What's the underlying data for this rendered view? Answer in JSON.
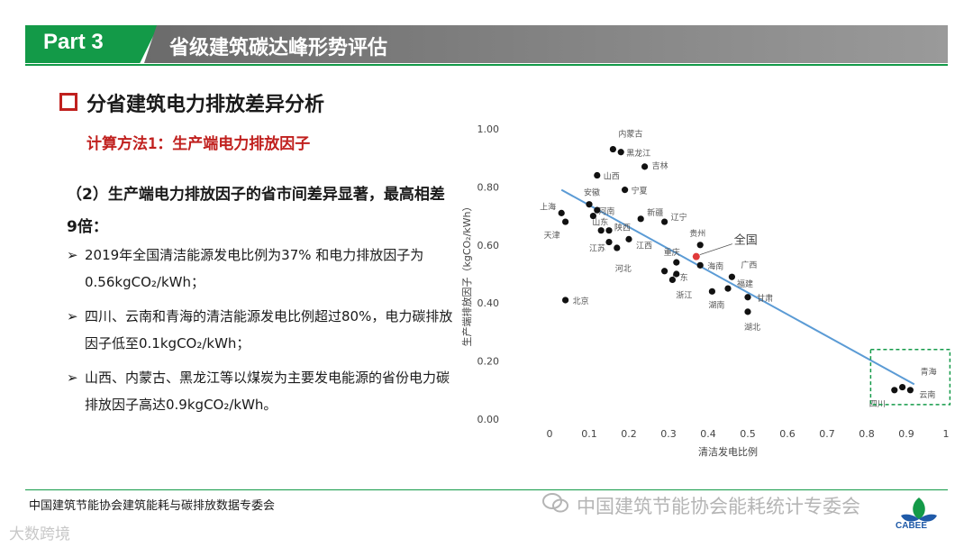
{
  "header": {
    "part": "Part 3",
    "title": "省级建筑碳达峰形势评估"
  },
  "section": {
    "title": "分省建筑电力排放差异分析",
    "method": "计算方法1：生产端电力排放因子"
  },
  "content": {
    "subheading": "（2）生产端电力排放因子的省市间差异显著，最高相差9倍：",
    "bullets": [
      "2019年全国清洁能源发电比例为37% 和电力排放因子为0.56kgCO₂/kWh；",
      "四川、云南和青海的清洁能源发电比例超过80%，电力碳排放因子低至0.1kgCO₂/kWh；",
      "山西、内蒙古、黑龙江等以煤炭为主要发电能源的省份电力碳排放因子高达0.9kgCO₂/kWh。"
    ],
    "bullet_mark": "➢"
  },
  "chart_data": {
    "type": "scatter",
    "xlabel": "清洁发电比例",
    "ylabel": "生产端排放因子（kgCO₂/kWh）",
    "xlim": [
      0,
      1
    ],
    "ylim": [
      0,
      1
    ],
    "xticks": [
      "0",
      "0.1",
      "0.2",
      "0.3",
      "0.4",
      "0.5",
      "0.6",
      "0.7",
      "0.8",
      "0.9",
      "1"
    ],
    "yticks": [
      "0.00",
      "0.20",
      "0.40",
      "0.60",
      "0.80",
      "1.00"
    ],
    "points": [
      {
        "label": "内蒙古",
        "x": 0.16,
        "y": 0.93
      },
      {
        "label": "黑龙江",
        "x": 0.18,
        "y": 0.92
      },
      {
        "label": "吉林",
        "x": 0.24,
        "y": 0.87
      },
      {
        "label": "山西",
        "x": 0.12,
        "y": 0.84
      },
      {
        "label": "宁夏",
        "x": 0.19,
        "y": 0.79
      },
      {
        "label": "安徽",
        "x": 0.1,
        "y": 0.74
      },
      {
        "label": "上海",
        "x": 0.03,
        "y": 0.71
      },
      {
        "label": "天津",
        "x": 0.04,
        "y": 0.68
      },
      {
        "label": "河南",
        "x": 0.11,
        "y": 0.7
      },
      {
        "label": "",
        "x": 0.12,
        "y": 0.72
      },
      {
        "label": "新疆",
        "x": 0.23,
        "y": 0.69
      },
      {
        "label": "辽宁",
        "x": 0.29,
        "y": 0.68
      },
      {
        "label": "山东",
        "x": 0.13,
        "y": 0.65
      },
      {
        "label": "陕西",
        "x": 0.15,
        "y": 0.65
      },
      {
        "label": "江苏",
        "x": 0.15,
        "y": 0.61
      },
      {
        "label": "江西",
        "x": 0.2,
        "y": 0.62
      },
      {
        "label": "河北",
        "x": 0.17,
        "y": 0.59
      },
      {
        "label": "贵州",
        "x": 0.38,
        "y": 0.6
      },
      {
        "label": "重庆",
        "x": 0.32,
        "y": 0.54
      },
      {
        "label": "广东",
        "x": 0.29,
        "y": 0.51
      },
      {
        "label": "",
        "x": 0.32,
        "y": 0.5
      },
      {
        "label": "海南",
        "x": 0.38,
        "y": 0.53
      },
      {
        "label": "浙江",
        "x": 0.31,
        "y": 0.48
      },
      {
        "label": "广西",
        "x": 0.46,
        "y": 0.49
      },
      {
        "label": "福建",
        "x": 0.45,
        "y": 0.45
      },
      {
        "label": "湖南",
        "x": 0.41,
        "y": 0.44
      },
      {
        "label": "甘肃",
        "x": 0.5,
        "y": 0.42
      },
      {
        "label": "湖北",
        "x": 0.5,
        "y": 0.37
      },
      {
        "label": "北京",
        "x": 0.04,
        "y": 0.41
      },
      {
        "label": "青海",
        "x": 0.89,
        "y": 0.11
      },
      {
        "label": "四川",
        "x": 0.87,
        "y": 0.1
      },
      {
        "label": "云南",
        "x": 0.91,
        "y": 0.1
      }
    ],
    "highlight": {
      "label": "全国",
      "x": 0.37,
      "y": 0.56,
      "color": "#e03a3a"
    },
    "trendline": {
      "x": [
        0.03,
        0.92
      ],
      "y": [
        0.79,
        0.12
      ],
      "color": "#5b9bd5"
    },
    "grid": false,
    "legend": "none"
  },
  "footer": {
    "org": "中国建筑节能协会建筑能耗与碳排放数据专委会",
    "watermark": "中国建筑节能协会能耗统计专委会",
    "logo_text": "CABEE",
    "corner": "大数跨境"
  },
  "colors": {
    "green": "#139a48",
    "red": "#c0201e",
    "gray": "#7f7f7f",
    "blue": "#5b9bd5"
  }
}
